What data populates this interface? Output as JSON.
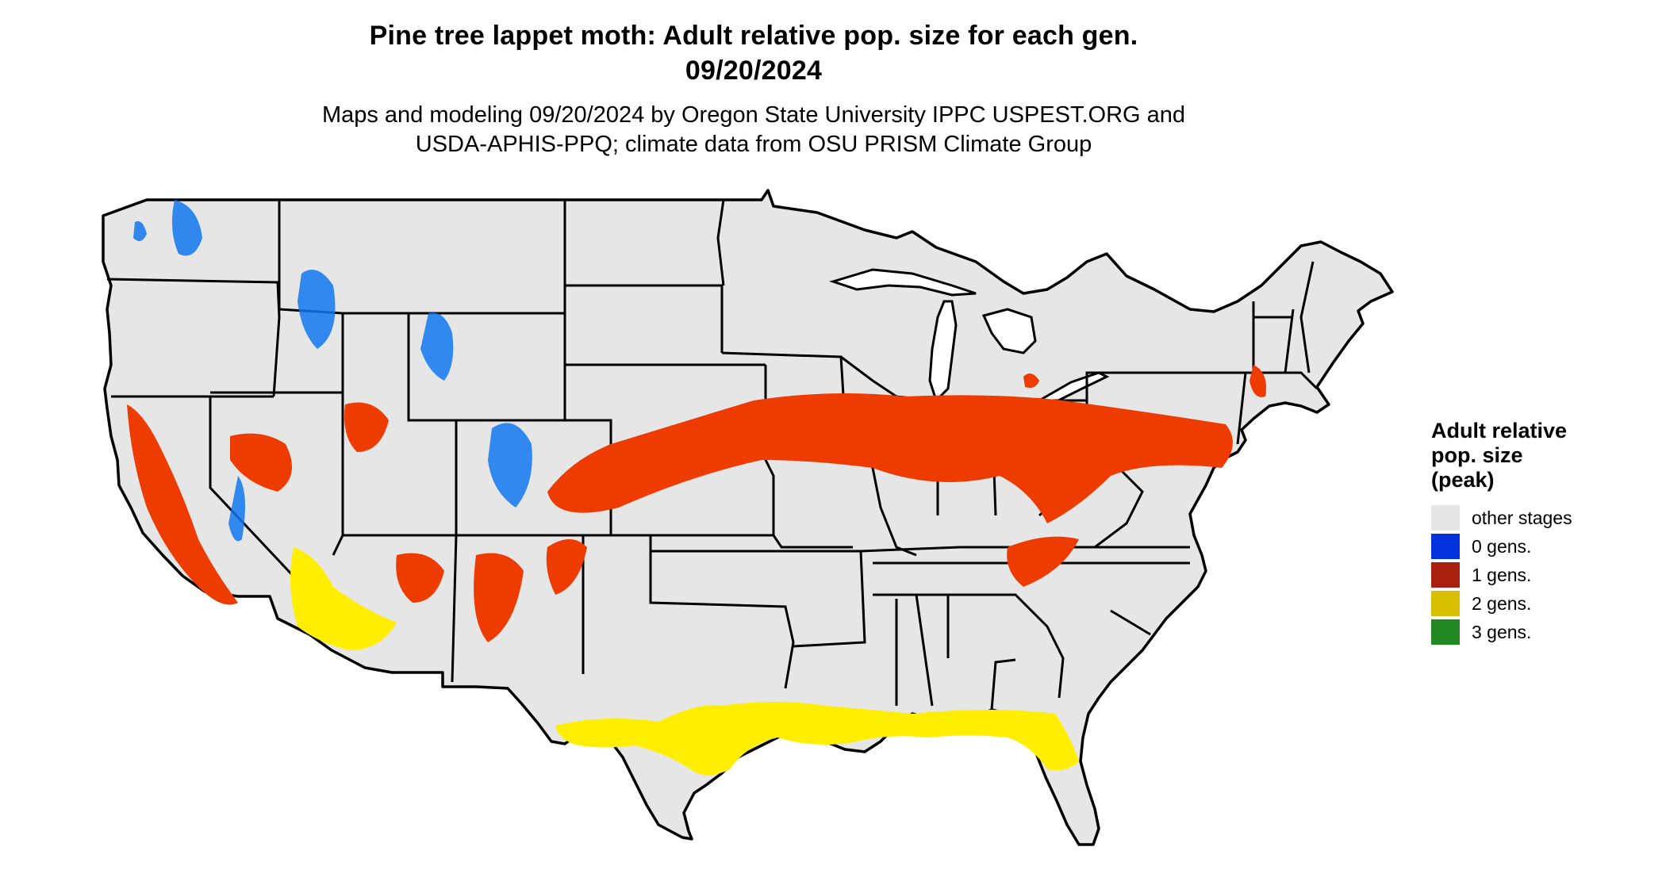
{
  "title": {
    "line1": "Pine tree lappet moth: Adult relative pop. size for each gen.",
    "line2": "09/20/2024"
  },
  "subtitle": {
    "line1": "Maps and modeling 09/20/2024 by Oregon State University IPPC USPEST.ORG and",
    "line2": "USDA-APHIS-PPQ; climate data from OSU PRISM Climate Group"
  },
  "map": {
    "region": "Contiguous United States",
    "base_color": "#e6e6e6",
    "border_color": "#000000"
  },
  "legend": {
    "title_lines": [
      "Adult relative",
      "pop. size",
      "(peak)"
    ],
    "items": [
      {
        "label": "other stages",
        "color": "#e6e6e6"
      },
      {
        "label": "0 gens.",
        "color": "#0033dd"
      },
      {
        "label": "1 gens.",
        "color": "#a92010"
      },
      {
        "label": "2 gens.",
        "color": "#d8c000"
      },
      {
        "label": "3 gens.",
        "color": "#228822"
      }
    ]
  }
}
